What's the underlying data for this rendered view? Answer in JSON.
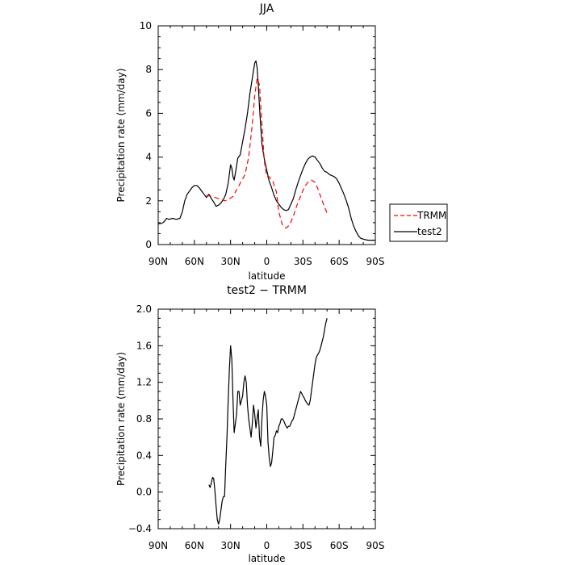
{
  "chart_data": [
    {
      "type": "line",
      "title": "JJA",
      "xlabel": "latitude",
      "ylabel": "Precipitation rate (mm/day)",
      "xlim": [
        90,
        -90
      ],
      "ylim": [
        0,
        10
      ],
      "xticks": [
        {
          "value": 90,
          "label": "90N"
        },
        {
          "value": 60,
          "label": "60N"
        },
        {
          "value": 30,
          "label": "30N"
        },
        {
          "value": 0,
          "label": "0"
        },
        {
          "value": -30,
          "label": "30S"
        },
        {
          "value": -60,
          "label": "60S"
        },
        {
          "value": -90,
          "label": "90S"
        }
      ],
      "yticks": [
        {
          "value": 0,
          "label": "0"
        },
        {
          "value": 2,
          "label": "2"
        },
        {
          "value": 4,
          "label": "4"
        },
        {
          "value": 6,
          "label": "6"
        },
        {
          "value": 8,
          "label": "8"
        },
        {
          "value": 10,
          "label": "10"
        }
      ],
      "grid": false,
      "legend_position": "outside-right",
      "series": [
        {
          "name": "TRMM",
          "color": "#ff0000",
          "style": "dashed",
          "x": [
            50,
            45,
            40,
            35,
            32,
            28,
            25,
            22,
            18,
            15,
            12,
            10,
            8,
            6,
            4,
            2,
            0,
            -2,
            -5,
            -8,
            -10,
            -13,
            -16,
            -19,
            -22,
            -25,
            -28,
            -31,
            -34,
            -37,
            -40,
            -42,
            -44,
            -46,
            -48,
            -50
          ],
          "y": [
            2.25,
            2.2,
            2.1,
            2.0,
            2.05,
            2.2,
            2.5,
            2.8,
            3.2,
            4.0,
            5.5,
            6.8,
            7.6,
            7.3,
            5.5,
            3.8,
            3.1,
            3.1,
            2.9,
            2.4,
            1.5,
            0.9,
            0.75,
            0.9,
            1.3,
            1.8,
            2.2,
            2.6,
            2.85,
            2.95,
            2.85,
            2.6,
            2.3,
            2.0,
            1.7,
            1.45
          ]
        },
        {
          "name": "test2",
          "color": "#000000",
          "style": "solid",
          "x": [
            90,
            87,
            85,
            83,
            81,
            78,
            75,
            72,
            70,
            68,
            66,
            64,
            62,
            60,
            58,
            56,
            54,
            52,
            50,
            48,
            46,
            44,
            42,
            40,
            38,
            36,
            34,
            32,
            30,
            29,
            28,
            27,
            26,
            25,
            24,
            22,
            20,
            18,
            16,
            14,
            12,
            10,
            9,
            8,
            7,
            6,
            5,
            4,
            2,
            0,
            -2,
            -4,
            -6,
            -8,
            -10,
            -12,
            -14,
            -16,
            -18,
            -20,
            -22,
            -24,
            -26,
            -28,
            -30,
            -32,
            -34,
            -36,
            -38,
            -40,
            -42,
            -44,
            -46,
            -48,
            -50,
            -52,
            -54,
            -56,
            -58,
            -60,
            -62,
            -64,
            -66,
            -68,
            -70,
            -72,
            -74,
            -76,
            -78,
            -80,
            -82,
            -84,
            -86,
            -88,
            -90
          ],
          "y": [
            0.95,
            0.97,
            1.05,
            1.2,
            1.15,
            1.2,
            1.15,
            1.2,
            1.5,
            2.0,
            2.3,
            2.45,
            2.6,
            2.7,
            2.7,
            2.6,
            2.45,
            2.3,
            2.15,
            2.3,
            2.1,
            1.95,
            1.75,
            1.8,
            1.9,
            2.05,
            2.3,
            2.8,
            3.65,
            3.5,
            3.1,
            2.95,
            3.25,
            3.6,
            3.95,
            4.1,
            4.7,
            5.3,
            6.0,
            6.9,
            7.6,
            8.3,
            8.4,
            8.1,
            7.3,
            6.3,
            5.4,
            4.6,
            3.9,
            3.4,
            2.9,
            2.6,
            2.25,
            2.0,
            1.85,
            1.7,
            1.6,
            1.55,
            1.6,
            1.85,
            2.1,
            2.5,
            2.85,
            3.15,
            3.45,
            3.7,
            3.9,
            4.0,
            4.05,
            4.0,
            3.85,
            3.7,
            3.5,
            3.35,
            3.3,
            3.2,
            3.15,
            3.1,
            3.0,
            2.8,
            2.55,
            2.3,
            2.0,
            1.65,
            1.2,
            0.85,
            0.6,
            0.4,
            0.28,
            0.25,
            0.22,
            0.2,
            0.2,
            0.2,
            0.2
          ]
        }
      ]
    },
    {
      "type": "line",
      "title": "test2 − TRMM",
      "xlabel": "latitude",
      "ylabel": "Precipitation rate (mm/day)",
      "xlim": [
        90,
        -90
      ],
      "ylim": [
        -0.4,
        2.0
      ],
      "xticks": [
        {
          "value": 90,
          "label": "90N"
        },
        {
          "value": 60,
          "label": "60N"
        },
        {
          "value": 30,
          "label": "30N"
        },
        {
          "value": 0,
          "label": "0"
        },
        {
          "value": -30,
          "label": "30S"
        },
        {
          "value": -60,
          "label": "60S"
        },
        {
          "value": -90,
          "label": "90S"
        }
      ],
      "yticks": [
        {
          "value": -0.4,
          "label": "−0.4"
        },
        {
          "value": 0.0,
          "label": "0.0"
        },
        {
          "value": 0.4,
          "label": "0.4"
        },
        {
          "value": 0.8,
          "label": "0.8"
        },
        {
          "value": 1.2,
          "label": "1.2"
        },
        {
          "value": 1.6,
          "label": "1.6"
        },
        {
          "value": 2.0,
          "label": "2.0"
        }
      ],
      "grid": false,
      "series": [
        {
          "color": "#000000",
          "style": "solid",
          "x": [
            48,
            47,
            46,
            45,
            44,
            43,
            42,
            41,
            40,
            39,
            38,
            37,
            36,
            35,
            34,
            33,
            32,
            31,
            30,
            29,
            28,
            27,
            26,
            25,
            24,
            23,
            22,
            21,
            20,
            19,
            18,
            17,
            16,
            15,
            14,
            13,
            12,
            11,
            10,
            9,
            8,
            7,
            6,
            5,
            4,
            3,
            2,
            1,
            0,
            -1,
            -2,
            -3,
            -4,
            -5,
            -6,
            -7,
            -8,
            -9,
            -10,
            -11,
            -12,
            -13,
            -14,
            -15,
            -16,
            -17,
            -18,
            -19,
            -20,
            -21,
            -22,
            -23,
            -24,
            -25,
            -26,
            -27,
            -28,
            -29,
            -30,
            -31,
            -32,
            -33,
            -34,
            -35,
            -36,
            -37,
            -38,
            -39,
            -40,
            -41,
            -42,
            -43,
            -44,
            -45,
            -46,
            -47,
            -48,
            -49,
            -50
          ],
          "y": [
            0.08,
            0.05,
            0.1,
            0.16,
            0.15,
            0.02,
            -0.15,
            -0.3,
            -0.35,
            -0.3,
            -0.2,
            -0.1,
            -0.05,
            -0.05,
            0.3,
            0.6,
            1.0,
            1.35,
            1.6,
            1.45,
            1.0,
            0.65,
            0.75,
            0.85,
            1.1,
            1.1,
            0.95,
            1.0,
            1.05,
            1.2,
            1.27,
            1.2,
            0.95,
            0.8,
            0.7,
            0.6,
            0.75,
            0.95,
            0.85,
            0.7,
            0.8,
            0.9,
            0.6,
            0.5,
            0.8,
            1.0,
            1.1,
            1.05,
            0.95,
            0.55,
            0.38,
            0.28,
            0.32,
            0.45,
            0.6,
            0.62,
            0.67,
            0.65,
            0.72,
            0.75,
            0.8,
            0.8,
            0.78,
            0.75,
            0.72,
            0.7,
            0.72,
            0.72,
            0.75,
            0.78,
            0.8,
            0.85,
            0.9,
            0.95,
            1.0,
            1.05,
            1.1,
            1.08,
            1.05,
            1.03,
            1.0,
            0.98,
            0.96,
            0.95,
            1.0,
            1.1,
            1.2,
            1.3,
            1.4,
            1.47,
            1.5,
            1.52,
            1.55,
            1.6,
            1.65,
            1.7,
            1.78,
            1.85,
            1.9
          ]
        }
      ]
    }
  ]
}
